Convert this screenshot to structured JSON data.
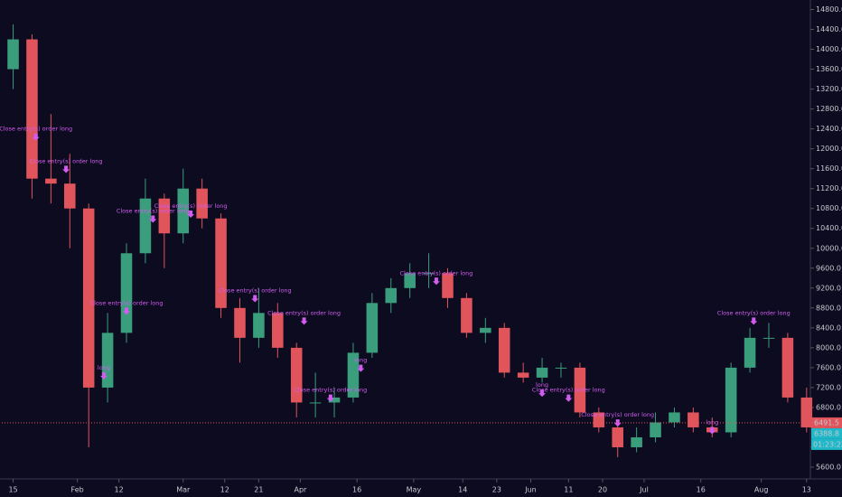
{
  "chart_data": {
    "type": "candlestick",
    "up_color": "#3a9e7c",
    "down_color": "#e0545b",
    "x": [
      0,
      5,
      10,
      15,
      20,
      25,
      30,
      35,
      40,
      45,
      50,
      55,
      60,
      65,
      70,
      75,
      80,
      85,
      90,
      95,
      100,
      105,
      110,
      115,
      120,
      125,
      130,
      135,
      140,
      145,
      150,
      155,
      160,
      165,
      170,
      175,
      180,
      185,
      190,
      195,
      200,
      205,
      210
    ],
    "open": [
      13600,
      14200,
      11400,
      11300,
      10800,
      7200,
      8300,
      9900,
      11000,
      10300,
      11200,
      10600,
      8800,
      8200,
      8700,
      8000,
      6900,
      6900,
      7000,
      7900,
      8900,
      9200,
      9500,
      9500,
      9000,
      8300,
      8400,
      7500,
      7400,
      7600,
      7600,
      6700,
      6400,
      6000,
      6200,
      6500,
      6700,
      6400,
      6300,
      7600,
      8200,
      8200,
      7000
    ],
    "high": [
      14500,
      14300,
      12700,
      11900,
      10900,
      8700,
      10100,
      11400,
      11100,
      11600,
      11400,
      10700,
      9000,
      9200,
      8900,
      8100,
      7500,
      7200,
      8100,
      9100,
      9400,
      9700,
      9900,
      9600,
      9100,
      8600,
      8500,
      7700,
      7800,
      7700,
      7700,
      6800,
      6500,
      6400,
      6700,
      6800,
      6800,
      6600,
      7700,
      8400,
      8500,
      8300,
      7200
    ],
    "low": [
      13200,
      11000,
      10900,
      10000,
      6000,
      6900,
      8100,
      9700,
      9600,
      10100,
      10400,
      8600,
      7700,
      8000,
      7800,
      6600,
      6600,
      6600,
      6900,
      7800,
      8700,
      9000,
      9200,
      8800,
      8200,
      8100,
      7400,
      7300,
      7300,
      7400,
      6600,
      6300,
      5800,
      5900,
      6100,
      6400,
      6300,
      6200,
      6200,
      7500,
      8000,
      6900,
      6300
    ],
    "close": [
      14200,
      11400,
      11300,
      10800,
      7200,
      8300,
      9900,
      11000,
      10300,
      11200,
      10600,
      8800,
      8200,
      8700,
      8000,
      6900,
      6900,
      7000,
      7900,
      8900,
      9200,
      9500,
      9500,
      9000,
      8300,
      8400,
      7500,
      7400,
      7600,
      7600,
      6700,
      6400,
      6000,
      6200,
      6500,
      6700,
      6400,
      6300,
      7600,
      8200,
      8200,
      7000,
      6400
    ],
    "xlim": [
      -3,
      211
    ],
    "ylim": [
      5400,
      14900
    ],
    "xticks": [
      {
        "value": 0,
        "label": "15"
      },
      {
        "value": 17,
        "label": "Feb"
      },
      {
        "value": 28,
        "label": "12"
      },
      {
        "value": 45,
        "label": "Mar"
      },
      {
        "value": 56,
        "label": "12"
      },
      {
        "value": 65,
        "label": "21"
      },
      {
        "value": 76,
        "label": "Apr"
      },
      {
        "value": 91,
        "label": "16"
      },
      {
        "value": 106,
        "label": "May"
      },
      {
        "value": 119,
        "label": "14"
      },
      {
        "value": 128,
        "label": "23"
      },
      {
        "value": 137,
        "label": "Jun"
      },
      {
        "value": 147,
        "label": "11"
      },
      {
        "value": 156,
        "label": "20"
      },
      {
        "value": 167,
        "label": "Jul"
      },
      {
        "value": 182,
        "label": "16"
      },
      {
        "value": 198,
        "label": "Aug"
      },
      {
        "value": 210,
        "label": "13"
      }
    ],
    "yticks": [
      {
        "value": 5600,
        "label": "5600.0"
      },
      {
        "value": 6000,
        "label": "6000.0"
      },
      {
        "value": 6400,
        "label": "6400.0"
      },
      {
        "value": 6800,
        "label": "6800.0"
      },
      {
        "value": 7200,
        "label": "7200.0"
      },
      {
        "value": 7600,
        "label": "7600.0"
      },
      {
        "value": 8000,
        "label": "8000.0"
      },
      {
        "value": 8400,
        "label": "8400.0"
      },
      {
        "value": 8800,
        "label": "8800.0"
      },
      {
        "value": 9200,
        "label": "9200.0"
      },
      {
        "value": 9600,
        "label": "9600.0"
      },
      {
        "value": 10000,
        "label": "10000.0"
      },
      {
        "value": 10400,
        "label": "10400.0"
      },
      {
        "value": 10800,
        "label": "10800.0"
      },
      {
        "value": 11200,
        "label": "11200.0"
      },
      {
        "value": 11600,
        "label": "11600.0"
      },
      {
        "value": 12000,
        "label": "12000.0"
      },
      {
        "value": 12400,
        "label": "12400.0"
      },
      {
        "value": 12800,
        "label": "12800.0"
      },
      {
        "value": 13200,
        "label": "13200.0"
      },
      {
        "value": 13600,
        "label": "13600.0"
      },
      {
        "value": 14000,
        "label": "14000.0"
      },
      {
        "value": 14400,
        "label": "14400.0"
      },
      {
        "value": 14800,
        "label": "14800.0"
      }
    ],
    "annotations": [
      {
        "text": "Close entry(s) order long",
        "x": 6,
        "y": 12400
      },
      {
        "text": "Close entry(s) order long",
        "x": 14,
        "y": 11750
      },
      {
        "text": "Close entry(s) order long",
        "x": 30,
        "y": 8900
      },
      {
        "text": "Close entry(s) order long",
        "x": 37,
        "y": 10750
      },
      {
        "text": "Close entry(s) order long",
        "x": 47,
        "y": 10850
      },
      {
        "text": "Close entry(s) order long",
        "x": 64,
        "y": 9150
      },
      {
        "text": "Close entry(s) order long",
        "x": 77,
        "y": 8700
      },
      {
        "text": "Close entry(s) order long",
        "x": 84,
        "y": 7150
      },
      {
        "text": "Close entry(s) order long",
        "x": 112,
        "y": 9500
      },
      {
        "text": "Close entry(s) order long",
        "x": 147,
        "y": 7150
      },
      {
        "text": "Close entry(s) order long",
        "x": 160,
        "y": 6650
      },
      {
        "text": "Close entry(s) order long",
        "x": 196,
        "y": 8700
      },
      {
        "text": "long",
        "x": 24,
        "y": 7600
      },
      {
        "text": "long",
        "x": 92,
        "y": 7750
      },
      {
        "text": "long",
        "x": 140,
        "y": 7250
      },
      {
        "text": "long",
        "x": 185,
        "y": 6500
      }
    ],
    "last_price": 6491.5,
    "current_price": 6388.8,
    "countdown": "01:23:22"
  }
}
